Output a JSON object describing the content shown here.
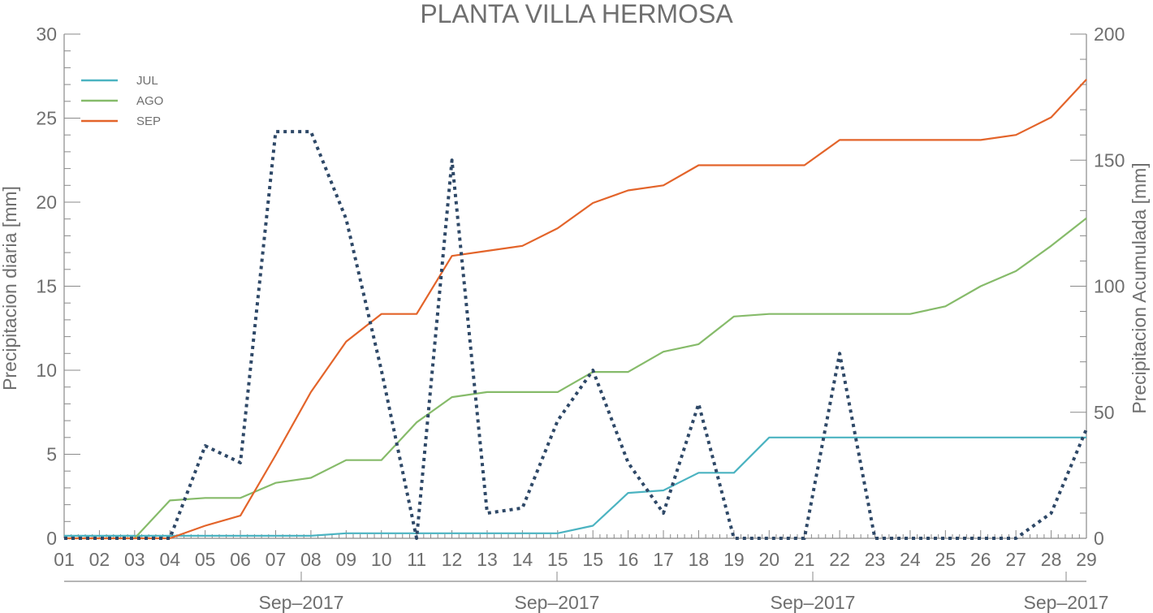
{
  "chart_data": {
    "type": "line",
    "title": "PLANTA VILLA HERMOSA",
    "ylabel_left": "Precipitacion diaria [mm]",
    "ylabel_right": "Precipitacion Acumulada [mm]",
    "ylim_left": [
      0,
      30
    ],
    "ylim_right": [
      0,
      200
    ],
    "yticks_left": [
      0,
      5,
      10,
      15,
      20,
      25,
      30
    ],
    "yticks_right": [
      0,
      50,
      100,
      150,
      200
    ],
    "x_tick_labels": [
      "01",
      "02",
      "03",
      "04",
      "05",
      "06",
      "07",
      "08",
      "09",
      "10",
      "11",
      "12",
      "13",
      "14",
      "15",
      "15",
      "16",
      "17",
      "18",
      "19",
      "20",
      "21",
      "22",
      "23",
      "24",
      "25",
      "26",
      "27",
      "28",
      "29"
    ],
    "x_secondary_labels": [
      "Sep–2017",
      "Sep–2017",
      "Sep–2017",
      "Sep–2017"
    ],
    "grid": false,
    "legend": "top-left",
    "series": [
      {
        "name": "JUL",
        "axis": "right",
        "color": "#4bb3c1",
        "style": "solid",
        "values": [
          1,
          1,
          1,
          1,
          1,
          1,
          1,
          1,
          2,
          2,
          2,
          2,
          2,
          2,
          2,
          5,
          18,
          19,
          26,
          26,
          40,
          40,
          40,
          40,
          40,
          40,
          40,
          40,
          40,
          40
        ]
      },
      {
        "name": "AGO",
        "axis": "right",
        "color": "#86bb6a",
        "style": "solid",
        "values": [
          0,
          0,
          0,
          15,
          16,
          16,
          22,
          24,
          31,
          31,
          46,
          56,
          58,
          58,
          58,
          66,
          66,
          74,
          77,
          88,
          89,
          89,
          89,
          89,
          89,
          92,
          100,
          106,
          116,
          127
        ]
      },
      {
        "name": "SEP",
        "axis": "right",
        "color": "#e3642a",
        "style": "solid",
        "values": [
          0,
          0,
          0,
          0,
          5,
          9,
          33,
          58,
          78,
          89,
          89,
          112,
          114,
          116,
          123,
          133,
          138,
          140,
          148,
          148,
          148,
          148,
          158,
          158,
          158,
          158,
          158,
          160,
          167,
          182
        ]
      },
      {
        "name": "",
        "axis": "left",
        "color": "#2e4867",
        "style": "dotted",
        "values": [
          0,
          0,
          0,
          0,
          5.5,
          4.5,
          24.2,
          24.2,
          19,
          10,
          0,
          22.5,
          1.5,
          1.8,
          7,
          10,
          4.5,
          1.5,
          8,
          0,
          0,
          0,
          11,
          0,
          0,
          0,
          0,
          0,
          1.5,
          6.5
        ]
      }
    ]
  }
}
